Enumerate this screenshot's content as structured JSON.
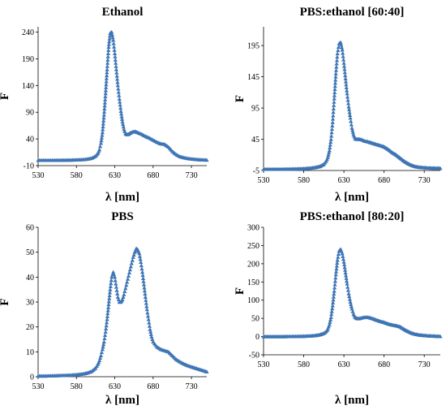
{
  "chart_data": [
    {
      "type": "scatter",
      "title": "Ethanol",
      "xlabel": "λ   [nm]",
      "ylabel": "F",
      "xlim": [
        530,
        750
      ],
      "ylim": [
        -10,
        250
      ],
      "x_ticks": [
        "530",
        "580",
        "630",
        "680",
        "730"
      ],
      "y_ticks": [
        "-10",
        "40",
        "90",
        "140",
        "190",
        "240"
      ],
      "marker_color": "#3E75B5",
      "series": [
        {
          "x": [
            530,
            540,
            550,
            560,
            570,
            580,
            590,
            595,
            600,
            605,
            608,
            610,
            612,
            614,
            616,
            618,
            620,
            622,
            624,
            626,
            628,
            630,
            632,
            634,
            636,
            638,
            640,
            642,
            644,
            646,
            648,
            650,
            653,
            656,
            660,
            665,
            670,
            675,
            680,
            685,
            690,
            695,
            700,
            705,
            710,
            715,
            720,
            725,
            730,
            735,
            740,
            745,
            750
          ],
          "y": [
            0,
            0,
            0,
            0.2,
            0.4,
            0.8,
            1.5,
            2.5,
            4,
            8,
            13,
            20,
            32,
            52,
            85,
            125,
            170,
            212,
            238,
            240,
            225,
            200,
            170,
            140,
            115,
            92,
            72,
            58,
            50,
            48,
            49,
            51,
            53,
            54,
            52,
            49,
            45,
            42,
            38,
            34,
            31,
            30,
            25,
            17,
            11,
            7,
            5,
            3.5,
            2.5,
            1.8,
            1.2,
            0.8,
            0.5
          ]
        }
      ]
    },
    {
      "type": "scatter",
      "title": "PBS:ethanol [60:40]",
      "xlabel": "λ   [nm]",
      "ylabel": "F",
      "xlim": [
        530,
        750
      ],
      "ylim": [
        -5,
        225
      ],
      "x_ticks": [
        "530",
        "580",
        "630",
        "680",
        "730"
      ],
      "y_ticks": [
        "-5",
        "45",
        "95",
        "145",
        "195"
      ],
      "marker_color": "#3E75B5",
      "series": [
        {
          "x": [
            530,
            540,
            550,
            560,
            570,
            580,
            590,
            595,
            600,
            605,
            608,
            610,
            612,
            614,
            616,
            618,
            620,
            622,
            624,
            626,
            628,
            630,
            632,
            634,
            636,
            638,
            640,
            642,
            644,
            646,
            648,
            650,
            653,
            656,
            660,
            665,
            670,
            675,
            680,
            685,
            690,
            695,
            700,
            705,
            710,
            715,
            720,
            725,
            730,
            735,
            740,
            745,
            750
          ],
          "y": [
            -3,
            -3,
            -3,
            -2.8,
            -2.5,
            -2,
            -1,
            0,
            1.5,
            5,
            10,
            16,
            27,
            45,
            72,
            110,
            150,
            182,
            198,
            200,
            188,
            167,
            142,
            118,
            97,
            79,
            63,
            52,
            46,
            45,
            45,
            45,
            44,
            42,
            41,
            39,
            37,
            35,
            33,
            29,
            24,
            20,
            15,
            10,
            6,
            3,
            1,
            0,
            -0.5,
            -1,
            -1.2,
            -1.4,
            -1.5
          ]
        }
      ]
    },
    {
      "type": "scatter",
      "title": "PBS",
      "xlabel": "λ   [nm]",
      "ylabel": "F",
      "xlim": [
        530,
        750
      ],
      "ylim": [
        0,
        60
      ],
      "x_ticks": [
        "530",
        "580",
        "630",
        "680",
        "730"
      ],
      "y_ticks": [
        "0",
        "10",
        "20",
        "30",
        "40",
        "50",
        "60"
      ],
      "marker_color": "#3E75B5",
      "series": [
        {
          "x": [
            530,
            540,
            550,
            560,
            570,
            580,
            590,
            595,
            600,
            605,
            608,
            610,
            612,
            614,
            616,
            618,
            620,
            622,
            624,
            626,
            628,
            630,
            632,
            634,
            636,
            638,
            640,
            642,
            644,
            646,
            648,
            650,
            652,
            654,
            656,
            658,
            660,
            662,
            664,
            666,
            668,
            670,
            672,
            674,
            676,
            678,
            680,
            685,
            690,
            695,
            700,
            705,
            710,
            715,
            720,
            725,
            730,
            735,
            740,
            745,
            750
          ],
          "y": [
            0.3,
            0.3,
            0.4,
            0.5,
            0.6,
            0.8,
            1.2,
            1.6,
            2.2,
            3.5,
            5,
            6.5,
            8.5,
            11,
            14,
            18,
            23,
            29,
            35,
            40,
            42,
            40,
            36,
            32,
            30,
            30,
            31,
            33,
            35.5,
            38,
            40.5,
            43,
            45.5,
            48,
            50,
            51.5,
            51,
            49.5,
            46,
            42,
            37,
            32,
            27,
            23,
            19,
            16,
            14,
            12,
            11,
            10.5,
            10,
            8.5,
            7,
            6,
            5.2,
            4.5,
            4,
            3.5,
            3,
            2.5,
            2
          ]
        }
      ]
    },
    {
      "type": "scatter",
      "title": "PBS:ethanol [80:20]",
      "xlabel": "λ   [nm]",
      "ylabel": "F",
      "xlim": [
        530,
        750
      ],
      "ylim": [
        -50,
        300
      ],
      "x_ticks": [
        "530",
        "580",
        "630",
        "680",
        "730"
      ],
      "y_ticks": [
        "-50",
        "0",
        "50",
        "100",
        "150",
        "200",
        "250",
        "300"
      ],
      "marker_color": "#3E75B5",
      "series": [
        {
          "x": [
            530,
            540,
            550,
            560,
            570,
            580,
            590,
            595,
            600,
            605,
            608,
            610,
            612,
            614,
            616,
            618,
            620,
            622,
            624,
            626,
            628,
            630,
            632,
            634,
            636,
            638,
            640,
            642,
            644,
            646,
            648,
            650,
            653,
            656,
            660,
            665,
            670,
            675,
            680,
            685,
            690,
            695,
            700,
            705,
            710,
            715,
            720,
            725,
            730,
            735,
            740,
            745,
            750
          ],
          "y": [
            0,
            0,
            0,
            0.2,
            0.5,
            1,
            2,
            3,
            5,
            9,
            14,
            21,
            33,
            53,
            85,
            125,
            170,
            210,
            235,
            240,
            228,
            205,
            175,
            145,
            118,
            95,
            76,
            62,
            53,
            50,
            49,
            50,
            52,
            53,
            53,
            50,
            46,
            42,
            39,
            35,
            32,
            30,
            27,
            20,
            14,
            9,
            6,
            4,
            3,
            2,
            1.5,
            1,
            0.5
          ]
        }
      ]
    }
  ]
}
